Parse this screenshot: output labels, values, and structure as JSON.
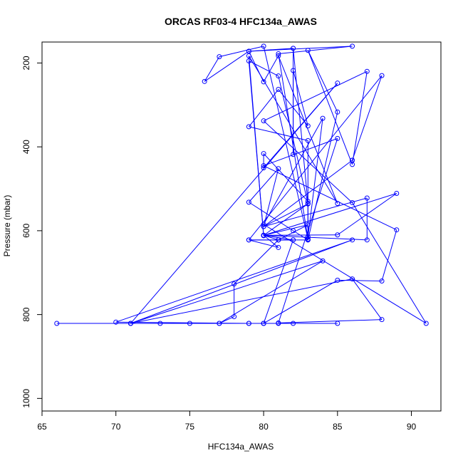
{
  "chart_data": {
    "type": "scatter",
    "title": "ORCAS RF03-4 HFC134a_AWAS",
    "xlabel": "HFC134a_AWAS",
    "ylabel": "Pressure (mbar)",
    "xlim": [
      65,
      92
    ],
    "ylim": [
      1030,
      150
    ],
    "y_reversed": true,
    "x_ticks": [
      65,
      70,
      75,
      80,
      85,
      90
    ],
    "y_ticks": [
      200,
      400,
      600,
      800,
      1000
    ],
    "grid": false,
    "legend": "none",
    "series": [
      {
        "color": "#0000ff",
        "marker": "open-circle",
        "connected": true,
        "points": [
          [
            66,
            821
          ],
          [
            71,
            821
          ],
          [
            73,
            821
          ],
          [
            75,
            821
          ],
          [
            77,
            821
          ],
          [
            79,
            821
          ],
          [
            80,
            821
          ],
          [
            81,
            821
          ],
          [
            82,
            821
          ],
          [
            85,
            821
          ],
          [
            80,
            821
          ],
          [
            79,
            821
          ],
          [
            70,
            818
          ],
          [
            86,
            622
          ],
          [
            71,
            821
          ],
          [
            84,
            672
          ],
          [
            77,
            821
          ],
          [
            78,
            805
          ],
          [
            78,
            727
          ],
          [
            81,
            622
          ],
          [
            80,
            611
          ],
          [
            83,
            586
          ],
          [
            81,
            622
          ],
          [
            79,
            622
          ],
          [
            81,
            640
          ],
          [
            80,
            611
          ],
          [
            85,
            610
          ],
          [
            89,
            511
          ],
          [
            80,
            611
          ],
          [
            87,
            622
          ],
          [
            87,
            522
          ],
          [
            80,
            590
          ],
          [
            83,
            536
          ],
          [
            80,
            611
          ],
          [
            82,
            622
          ],
          [
            81,
            622
          ],
          [
            83,
            622
          ],
          [
            82,
            600
          ],
          [
            79,
            532
          ],
          [
            81,
            452
          ],
          [
            80,
            590
          ],
          [
            86,
            432
          ],
          [
            86,
            432
          ],
          [
            88,
            230
          ],
          [
            79,
            622
          ],
          [
            82,
            622
          ],
          [
            80,
            821
          ],
          [
            85,
            718
          ],
          [
            88,
            720
          ],
          [
            89,
            598
          ],
          [
            80,
            445
          ],
          [
            85,
            380
          ],
          [
            81,
            820
          ],
          [
            88,
            812
          ],
          [
            86,
            715
          ],
          [
            71,
            821
          ],
          [
            85,
            248
          ],
          [
            80,
            450
          ],
          [
            80,
            416
          ],
          [
            83,
            530
          ],
          [
            83,
            622
          ],
          [
            85,
            317
          ],
          [
            83,
            170
          ],
          [
            86,
            442
          ],
          [
            87,
            220
          ],
          [
            80,
            338
          ],
          [
            86,
            533
          ],
          [
            91,
            821
          ],
          [
            80,
            585
          ],
          [
            84,
            332
          ],
          [
            83,
            615
          ],
          [
            83,
            385
          ],
          [
            79,
            352
          ],
          [
            81,
            263
          ],
          [
            83,
            350
          ],
          [
            82,
            218
          ],
          [
            82,
            418
          ],
          [
            82,
            165
          ],
          [
            83,
            535
          ],
          [
            81,
            231
          ],
          [
            79,
            195
          ],
          [
            80,
            612
          ],
          [
            79,
            183
          ],
          [
            85,
            535
          ],
          [
            81,
            183
          ],
          [
            80,
            245
          ],
          [
            79,
            172
          ],
          [
            86,
            160
          ],
          [
            81,
            178
          ],
          [
            83,
            620
          ],
          [
            80,
            160
          ],
          [
            77,
            185
          ],
          [
            76,
            244
          ],
          [
            79,
            172
          ],
          [
            82,
            165
          ]
        ]
      }
    ]
  }
}
